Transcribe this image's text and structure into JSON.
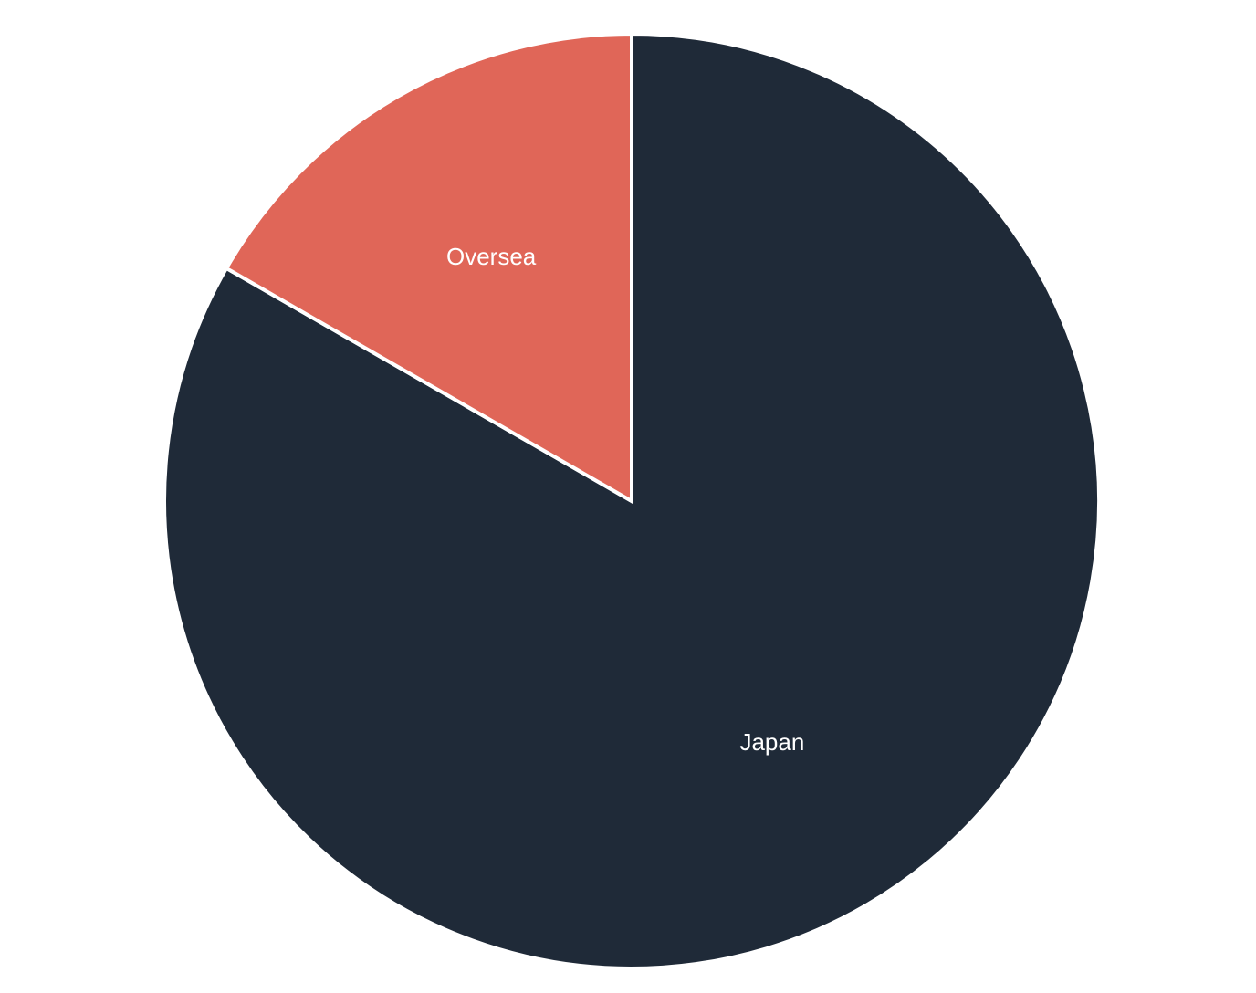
{
  "chart_data": {
    "type": "pie",
    "start_angle_deg": 0,
    "direction": "clockwise",
    "slices": [
      {
        "label": "Japan",
        "value": 83.3,
        "color": "#1f2a38"
      },
      {
        "label": "Oversea",
        "value": 16.7,
        "color": "#e06658"
      }
    ],
    "legend": "none",
    "data_labels": "inside-slice"
  }
}
